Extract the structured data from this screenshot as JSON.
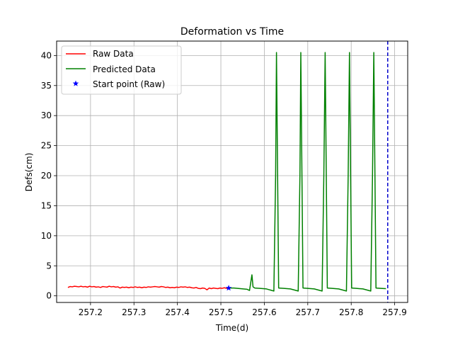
{
  "chart_data": {
    "type": "line",
    "title": "Deformation vs Time",
    "xlabel": "Time(d)",
    "ylabel": "Defs(cm)",
    "xlim": [
      257.122,
      257.93
    ],
    "ylim": [
      -1.1,
      42.4
    ],
    "xticks": [
      257.2,
      257.3,
      257.4,
      257.5,
      257.6,
      257.7,
      257.8,
      257.9
    ],
    "xtick_labels": [
      "257.2",
      "257.3",
      "257.4",
      "257.5",
      "257.6",
      "257.7",
      "257.8",
      "257.9"
    ],
    "yticks": [
      0,
      5,
      10,
      15,
      20,
      25,
      30,
      35,
      40
    ],
    "ytick_labels": [
      "0",
      "5",
      "10",
      "15",
      "20",
      "25",
      "30",
      "35",
      "40"
    ],
    "grid": true,
    "legend_position": "top-left",
    "series": [
      {
        "name": "Raw Data",
        "color": "#ff0000",
        "style": "line",
        "x": [
          257.148,
          257.153,
          257.158,
          257.163,
          257.168,
          257.173,
          257.178,
          257.183,
          257.188,
          257.193,
          257.198,
          257.203,
          257.208,
          257.213,
          257.218,
          257.223,
          257.228,
          257.233,
          257.238,
          257.243,
          257.248,
          257.253,
          257.258,
          257.263,
          257.268,
          257.273,
          257.278,
          257.283,
          257.288,
          257.293,
          257.298,
          257.303,
          257.308,
          257.313,
          257.318,
          257.323,
          257.328,
          257.333,
          257.338,
          257.343,
          257.348,
          257.353,
          257.358,
          257.363,
          257.368,
          257.373,
          257.378,
          257.383,
          257.388,
          257.393,
          257.398,
          257.403,
          257.408,
          257.413,
          257.418,
          257.423,
          257.428,
          257.433,
          257.438,
          257.443,
          257.448,
          257.453,
          257.458,
          257.463,
          257.468,
          257.473,
          257.478,
          257.483,
          257.488,
          257.493,
          257.498,
          257.503,
          257.508,
          257.513,
          257.518
        ],
        "y": [
          1.4,
          1.55,
          1.5,
          1.6,
          1.55,
          1.5,
          1.6,
          1.5,
          1.55,
          1.45,
          1.6,
          1.5,
          1.55,
          1.45,
          1.5,
          1.4,
          1.55,
          1.5,
          1.45,
          1.6,
          1.5,
          1.55,
          1.45,
          1.5,
          1.3,
          1.45,
          1.4,
          1.45,
          1.35,
          1.45,
          1.4,
          1.5,
          1.4,
          1.45,
          1.35,
          1.45,
          1.4,
          1.5,
          1.45,
          1.5,
          1.55,
          1.5,
          1.45,
          1.55,
          1.5,
          1.4,
          1.45,
          1.35,
          1.4,
          1.35,
          1.45,
          1.4,
          1.5,
          1.45,
          1.5,
          1.4,
          1.45,
          1.35,
          1.3,
          1.4,
          1.25,
          1.2,
          1.3,
          1.25,
          1.0,
          1.3,
          1.2,
          1.3,
          1.25,
          1.2,
          1.3,
          1.25,
          1.35,
          1.25,
          1.3
        ]
      },
      {
        "name": "Predicted Data",
        "color": "#008000",
        "style": "line",
        "x": [
          257.518,
          257.53,
          257.545,
          257.56,
          257.566,
          257.5715,
          257.574,
          257.578,
          257.59,
          257.605,
          257.622,
          257.626,
          257.628,
          257.633,
          257.645,
          257.66,
          257.678,
          257.682,
          257.684,
          257.689,
          257.7,
          257.715,
          257.733,
          257.737,
          257.74,
          257.745,
          257.756,
          257.771,
          257.789,
          257.793,
          257.796,
          257.801,
          257.812,
          257.827,
          257.845,
          257.849,
          257.852,
          257.857,
          257.868,
          257.88
        ],
        "y": [
          1.3,
          1.3,
          1.2,
          1.1,
          0.9,
          3.5,
          1.5,
          1.3,
          1.25,
          1.15,
          0.8,
          20.0,
          40.5,
          1.3,
          1.25,
          1.15,
          0.8,
          20.0,
          40.5,
          1.3,
          1.25,
          1.15,
          0.8,
          20.0,
          40.5,
          1.3,
          1.25,
          1.15,
          0.8,
          20.0,
          40.5,
          1.3,
          1.25,
          1.15,
          0.8,
          20.0,
          40.5,
          1.3,
          1.25,
          1.2
        ]
      },
      {
        "name": "Start point (Raw)",
        "color": "#0000ff",
        "style": "marker",
        "marker": "star",
        "x": [
          257.518
        ],
        "y": [
          1.3
        ]
      }
    ],
    "vertical_line": {
      "x": 257.884,
      "color": "#0000cc",
      "style": "dashed"
    }
  }
}
